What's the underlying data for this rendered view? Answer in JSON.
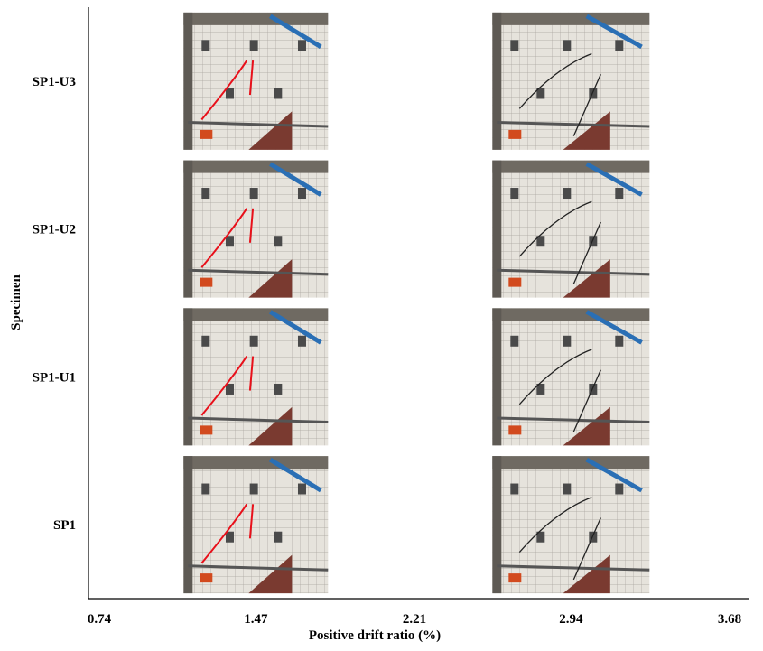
{
  "chart_data": {
    "type": "photo-grid",
    "categories": [
      "SP1-U3",
      "SP1-U2",
      "SP1-U1",
      "SP1"
    ],
    "x": [
      1.47,
      2.94
    ],
    "xlim": [
      0.74,
      3.68
    ],
    "xticks": [
      0.74,
      1.47,
      2.21,
      2.94,
      3.68
    ],
    "xlabel": "Positive drift ratio (%)",
    "ylabel": "Specimen"
  }
}
